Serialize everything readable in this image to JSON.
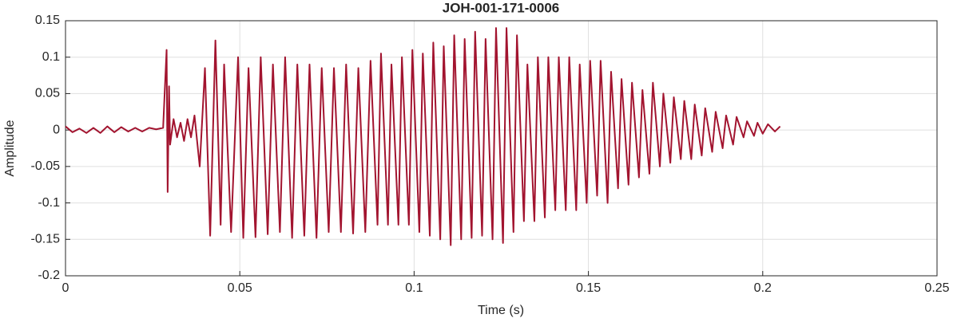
{
  "chart_data": {
    "type": "line",
    "title": "JOH-001-171-0006",
    "x_label": "Time (s)",
    "y_label": "Amplitude",
    "color": "#a2142f",
    "grid": true,
    "xlim": [
      0,
      0.25
    ],
    "ylim": [
      -0.2,
      0.15
    ],
    "xticks": [
      0,
      0.05,
      0.1,
      0.15,
      0.2,
      0.25
    ],
    "yticks": [
      -0.2,
      -0.15,
      -0.1,
      -0.05,
      0,
      0.05,
      0.1,
      0.15
    ],
    "x": [
      0,
      0.002,
      0.004,
      0.006,
      0.008,
      0.01,
      0.012,
      0.014,
      0.016,
      0.018,
      0.02,
      0.022,
      0.024,
      0.026,
      0.028,
      0.029,
      0.0293,
      0.0297,
      0.03,
      0.031,
      0.032,
      0.033,
      0.034,
      0.035,
      0.036,
      0.037,
      0.0385,
      0.04,
      0.0415,
      0.043,
      0.0445,
      0.0455,
      0.0475,
      0.0495,
      0.051,
      0.0525,
      0.0545,
      0.056,
      0.058,
      0.0595,
      0.0615,
      0.063,
      0.065,
      0.0665,
      0.0685,
      0.07,
      0.072,
      0.0735,
      0.0755,
      0.077,
      0.079,
      0.0805,
      0.0825,
      0.084,
      0.086,
      0.0875,
      0.0895,
      0.0905,
      0.0925,
      0.0935,
      0.0955,
      0.0965,
      0.0985,
      0.0995,
      0.1015,
      0.1025,
      0.1045,
      0.1055,
      0.1075,
      0.1085,
      0.1105,
      0.1115,
      0.1135,
      0.1145,
      0.1165,
      0.1175,
      0.1195,
      0.1205,
      0.1225,
      0.1235,
      0.1255,
      0.1265,
      0.1285,
      0.1295,
      0.1315,
      0.1325,
      0.1345,
      0.1355,
      0.1375,
      0.1385,
      0.1405,
      0.1415,
      0.1435,
      0.1445,
      0.1465,
      0.1475,
      0.1495,
      0.1505,
      0.1525,
      0.1535,
      0.1555,
      0.1565,
      0.1585,
      0.1595,
      0.1615,
      0.1625,
      0.1645,
      0.1655,
      0.1675,
      0.1685,
      0.1705,
      0.1715,
      0.1735,
      0.1745,
      0.1765,
      0.1775,
      0.1795,
      0.1805,
      0.1825,
      0.1835,
      0.1855,
      0.1865,
      0.1885,
      0.1895,
      0.1915,
      0.1925,
      0.1945,
      0.1955,
      0.1975,
      0.1985,
      0.2,
      0.2015,
      0.2035,
      0.205
    ],
    "values": [
      0.005,
      -0.003,
      0.002,
      -0.004,
      0.003,
      -0.004,
      0.005,
      -0.003,
      0.004,
      -0.002,
      0.003,
      -0.002,
      0.003,
      0.001,
      0.003,
      0.11,
      -0.085,
      0.06,
      -0.02,
      0.015,
      -0.01,
      0.01,
      -0.015,
      0.015,
      -0.01,
      0.02,
      -0.05,
      0.085,
      -0.145,
      0.123,
      -0.13,
      0.09,
      -0.14,
      0.1,
      -0.148,
      0.085,
      -0.147,
      0.1,
      -0.143,
      0.09,
      -0.14,
      0.1,
      -0.148,
      0.09,
      -0.145,
      0.09,
      -0.148,
      0.085,
      -0.14,
      0.085,
      -0.14,
      0.09,
      -0.142,
      0.085,
      -0.14,
      0.095,
      -0.13,
      0.105,
      -0.13,
      0.09,
      -0.13,
      0.1,
      -0.13,
      0.11,
      -0.14,
      0.105,
      -0.145,
      0.12,
      -0.15,
      0.115,
      -0.158,
      0.13,
      -0.15,
      0.125,
      -0.148,
      0.135,
      -0.145,
      0.125,
      -0.15,
      0.14,
      -0.155,
      0.14,
      -0.14,
      0.13,
      -0.125,
      0.09,
      -0.125,
      0.1,
      -0.12,
      0.1,
      -0.11,
      0.1,
      -0.11,
      0.1,
      -0.11,
      0.09,
      -0.1,
      0.095,
      -0.09,
      0.095,
      -0.1,
      0.08,
      -0.08,
      0.07,
      -0.075,
      0.065,
      -0.065,
      0.055,
      -0.06,
      0.065,
      -0.05,
      0.05,
      -0.045,
      0.045,
      -0.04,
      0.04,
      -0.04,
      0.035,
      -0.035,
      0.03,
      -0.03,
      0.025,
      -0.025,
      0.02,
      -0.02,
      0.018,
      -0.01,
      0.012,
      -0.008,
      0.01,
      -0.005,
      0.008,
      -0.002,
      0.005
    ]
  }
}
